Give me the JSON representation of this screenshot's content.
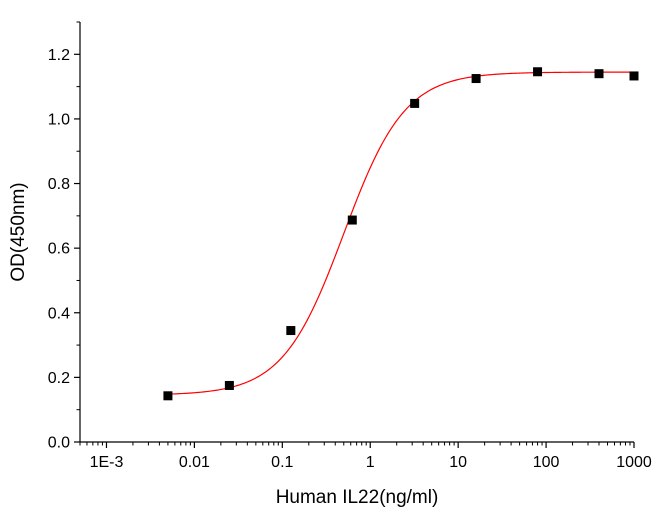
{
  "chart_data": {
    "type": "scatter",
    "title": "",
    "xlabel": "Human IL22(ng/ml)",
    "ylabel": "OD(450nm)",
    "x_scale": "log",
    "xlim": [
      0.0005,
      1000
    ],
    "ylim": [
      0.0,
      1.3
    ],
    "x_ticks": [
      0.001,
      0.01,
      0.1,
      1,
      10,
      100,
      1000
    ],
    "x_tick_labels": [
      "1E-3",
      "0.01",
      "0.1",
      "1",
      "10",
      "100",
      "1000"
    ],
    "y_ticks": [
      0.0,
      0.2,
      0.4,
      0.6,
      0.8,
      1.0,
      1.2
    ],
    "y_tick_labels": [
      "0.0",
      "0.2",
      "0.4",
      "0.6",
      "0.8",
      "1.0",
      "1.2"
    ],
    "grid": false,
    "series": [
      {
        "type": "scatter",
        "marker": "square",
        "color": "#000000",
        "x": [
          0.005,
          0.025,
          0.125,
          0.625,
          3.2,
          16,
          80,
          400,
          1000
        ],
        "y": [
          0.143,
          0.175,
          0.345,
          0.687,
          1.048,
          1.125,
          1.146,
          1.14,
          1.133
        ]
      },
      {
        "type": "line",
        "fit": "4-parameter logistic",
        "color": "#ff0000",
        "x_range": [
          0.005,
          1000
        ],
        "params": {
          "bottom": 0.145,
          "top": 1.145,
          "ec50": 0.5,
          "hill": 1.25
        }
      }
    ]
  }
}
